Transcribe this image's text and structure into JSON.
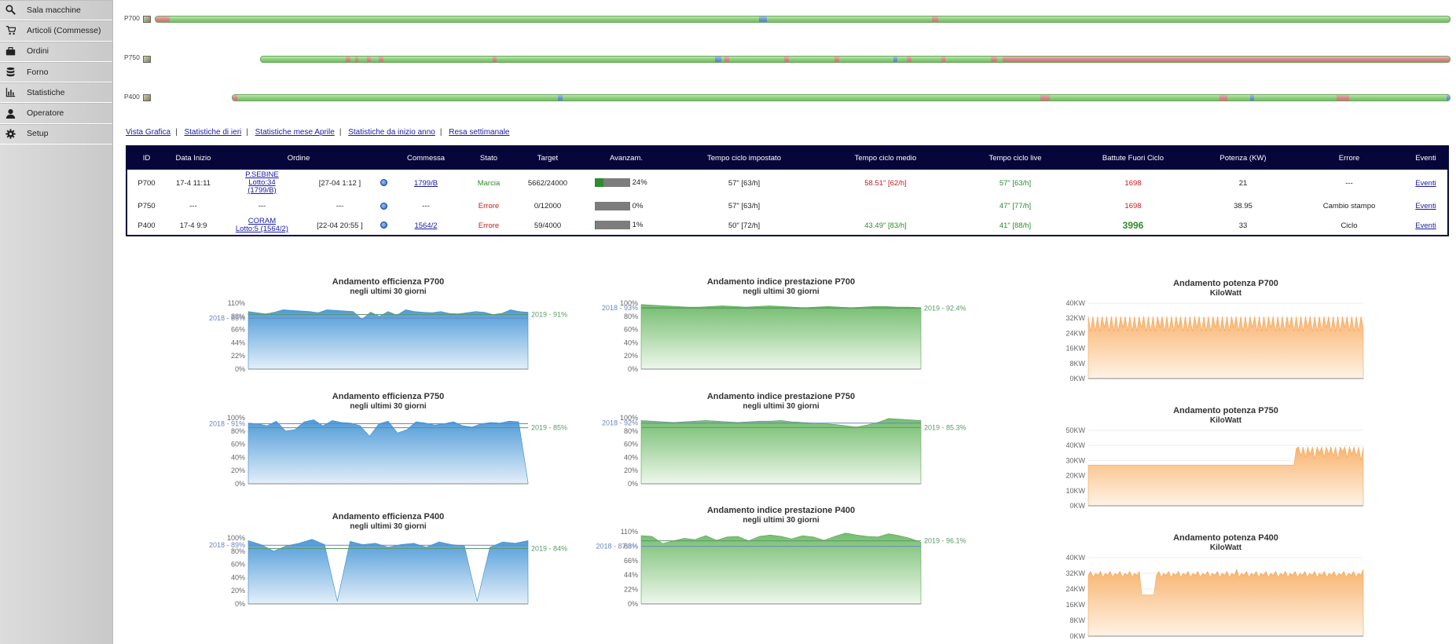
{
  "sidebar": {
    "items": [
      {
        "label": "Sala macchine",
        "icon": "search-icon"
      },
      {
        "label": "Articoli (Commesse)",
        "icon": "cart-icon"
      },
      {
        "label": "Ordini",
        "icon": "briefcase-icon"
      },
      {
        "label": "Forno",
        "icon": "database-icon"
      },
      {
        "label": "Statistiche",
        "icon": "bar-chart-icon"
      },
      {
        "label": "Operatore",
        "icon": "user-icon"
      },
      {
        "label": "Setup",
        "icon": "gear-icon"
      }
    ]
  },
  "timeline": {
    "rows": [
      {
        "machine": "P700"
      },
      {
        "machine": "P750"
      },
      {
        "machine": "P400"
      }
    ]
  },
  "links": [
    "Vista Grafica",
    "Statistiche di ieri",
    "Statistiche mese Aprile",
    "Statistiche da inizio anno",
    "Resa settimanale"
  ],
  "table": {
    "headers": [
      "ID",
      "Data Inizio",
      "Ordine",
      "",
      "",
      "Commessa",
      "Stato",
      "Target",
      "Avanzam.",
      "Tempo ciclo impostato",
      "Tempo ciclo medio",
      "Tempo ciclo live",
      "Battute Fuori Ciclo",
      "Potenza (KW)",
      "Errore",
      "Eventi"
    ],
    "rows": [
      {
        "id": "P700",
        "data_inizio": "17-4 11:11",
        "ordine_a": "P.SEBINE",
        "ordine_b": "Lotto:34",
        "ordine_c": "(1799/B)",
        "ordine_date": "[27-04 1:12 ]",
        "commessa": "1799/B",
        "stato": "Marcia",
        "target": "5662/24000",
        "progress": 24,
        "progress_label": "24%",
        "ciclo_impostato": "57\" [63/h]",
        "ciclo_medio": "58.51\" [62/h]",
        "ciclo_live": "57\" [63/h]",
        "battute": "1698",
        "potenza": "21",
        "errore": "---",
        "eventi": "Eventi"
      },
      {
        "id": "P750",
        "data_inizio": "---",
        "ordine_a": "---",
        "ordine_b": "",
        "ordine_c": "",
        "ordine_date": "---",
        "commessa": "---",
        "stato": "Errore",
        "target": "0/12000",
        "progress": 0,
        "progress_label": "0%",
        "ciclo_impostato": "57\" [63/h]",
        "ciclo_medio": "",
        "ciclo_live": "47\" [77/h]",
        "battute": "1698",
        "potenza": "38.95",
        "errore": "Cambio stampo",
        "eventi": "Eventi"
      },
      {
        "id": "P400",
        "data_inizio": "17-4 9:9",
        "ordine_a": "CORAM",
        "ordine_b": "Lotto:5 (1564/2)",
        "ordine_c": "",
        "ordine_date": "[22-04 20:55 ]",
        "commessa": "1564/2",
        "stato": "Errore",
        "target": "59/4000",
        "progress": 1,
        "progress_label": "1%",
        "ciclo_impostato": "50\" [72/h]",
        "ciclo_medio": "43.49\" [83/h]",
        "ciclo_live": "41\" [88/h]",
        "battute": "3996",
        "potenza": "33",
        "errore": "Ciclo",
        "eventi": "Eventi"
      }
    ]
  },
  "colors": {
    "accent_navy": "#06063a",
    "blue_area": "#5ba3dd",
    "green_area": "#7ec27a",
    "orange_area": "#f9b877",
    "ref_blue": "#6a86c0",
    "ref_green": "#5a9a6a"
  },
  "chart_data": [
    {
      "type": "area",
      "title": "Andamento efficienza P700",
      "subtitle": "negli ultimi 30 giorni",
      "yticks": [
        "110%",
        "88%",
        "66%",
        "44%",
        "22%",
        "0%"
      ],
      "ylim": [
        0,
        110
      ],
      "ref_left": "2018 - 85%",
      "ref_left_value": 85,
      "ref_right": "2019 - 91%",
      "ref_right_value": 91,
      "values": [
        96,
        94,
        92,
        95,
        99,
        98,
        97,
        96,
        94,
        99,
        98,
        97,
        96,
        83,
        95,
        88,
        96,
        90,
        99,
        96,
        95,
        94,
        96,
        93,
        92,
        94,
        96,
        95,
        91,
        93,
        99,
        96,
        95
      ]
    },
    {
      "type": "area",
      "title": "Andamento efficienza P750",
      "subtitle": "negli ultimi 30 giorni",
      "yticks": [
        "100%",
        "80%",
        "60%",
        "40%",
        "20%",
        "0%"
      ],
      "ylim": [
        0,
        100
      ],
      "ref_left": "2018 - 91%",
      "ref_left_value": 91,
      "ref_right": "2019 - 85%",
      "ref_right_value": 85,
      "values": [
        92,
        91,
        88,
        95,
        80,
        82,
        94,
        97,
        88,
        96,
        93,
        92,
        88,
        72,
        91,
        95,
        77,
        82,
        94,
        92,
        89,
        91,
        94,
        88,
        86,
        91,
        93,
        92,
        95,
        94,
        2
      ]
    },
    {
      "type": "area",
      "title": "Andamento efficienza P400",
      "subtitle": "negli ultimi 30 giorni",
      "yticks": [
        "100%",
        "80%",
        "60%",
        "40%",
        "20%",
        "0%"
      ],
      "ylim": [
        0,
        100
      ],
      "ref_left": "2018 - 89%",
      "ref_left_value": 89,
      "ref_right": "2019 - 84%",
      "ref_right_value": 84,
      "values": [
        96,
        90,
        80,
        88,
        92,
        98,
        90,
        4,
        95,
        90,
        92,
        86,
        90,
        92,
        86,
        94,
        90,
        88,
        4,
        86,
        94,
        92,
        96
      ]
    },
    {
      "type": "area",
      "title": "Andamento indice prestazione P700",
      "subtitle": "negli ultimi 30 giorni",
      "yticks": [
        "100%",
        "80%",
        "60%",
        "40%",
        "20%",
        "0%"
      ],
      "ylim": [
        0,
        100
      ],
      "ref_left": "2018 - 93%",
      "ref_left_value": 93,
      "ref_right": "2019 - 92.4%",
      "ref_right_value": 92.4,
      "values": [
        98,
        97,
        96,
        95,
        94,
        94,
        95,
        96,
        95,
        94,
        95,
        96,
        95,
        94,
        93,
        94,
        95,
        94,
        93,
        94,
        95,
        95,
        94,
        94,
        93
      ]
    },
    {
      "type": "area",
      "title": "Andamento indice prestazione P750",
      "subtitle": "negli ultimi 30 giorni",
      "yticks": [
        "100%",
        "80%",
        "60%",
        "40%",
        "20%",
        "0%"
      ],
      "ylim": [
        0,
        100
      ],
      "ref_left": "2018 - 92%",
      "ref_left_value": 92,
      "ref_right": "2019 - 85.3%",
      "ref_right_value": 85.3,
      "values": [
        96,
        95,
        94,
        93,
        94,
        95,
        96,
        95,
        94,
        93,
        94,
        95,
        95,
        96,
        94,
        93,
        92,
        91,
        90,
        88,
        86,
        89,
        93,
        99,
        98,
        97,
        96
      ]
    },
    {
      "type": "area",
      "title": "Andamento indice prestazione P400",
      "subtitle": "negli ultimi 30 giorni",
      "yticks": [
        "110%",
        "88%",
        "66%",
        "44%",
        "22%",
        "0%"
      ],
      "ylim": [
        0,
        110
      ],
      "ref_left": "2018 - 87.8%",
      "ref_left_value": 87.8,
      "ref_right": "2019 - 96.1%",
      "ref_right_value": 96.1,
      "values": [
        104,
        103,
        92,
        96,
        100,
        98,
        104,
        97,
        102,
        103,
        96,
        103,
        105,
        103,
        99,
        104,
        102,
        97,
        103,
        108,
        105,
        103,
        102,
        107,
        104,
        100,
        94
      ]
    },
    {
      "type": "area",
      "title": "Andamento potenza P700",
      "subtitle": "KiloWatt",
      "yticks": [
        "40KW",
        "32KW",
        "24KW",
        "16KW",
        "8KW",
        "0KW"
      ],
      "ylim": [
        0,
        40
      ],
      "values": [
        33,
        25,
        33,
        25,
        33,
        25,
        33,
        27,
        33,
        25,
        33,
        25,
        33,
        25,
        33,
        27,
        33,
        25,
        33,
        25,
        33,
        25,
        33,
        27,
        33,
        25,
        33,
        25,
        33,
        25,
        33,
        27,
        33,
        25,
        33,
        25,
        33,
        25,
        33,
        27,
        33,
        25,
        33,
        25,
        33,
        25,
        33,
        27,
        33,
        25,
        33,
        25,
        33,
        25,
        33,
        27,
        33,
        25,
        33,
        25,
        33,
        25,
        33,
        27,
        33,
        25,
        33,
        25,
        33,
        25,
        33,
        27,
        33,
        25,
        33,
        25,
        33,
        25,
        33,
        27,
        33,
        25,
        33,
        25,
        33,
        25,
        33,
        27,
        33,
        25,
        33,
        25,
        33,
        25,
        33,
        27,
        33,
        25,
        33,
        25,
        33,
        25,
        33,
        27,
        33,
        25,
        33,
        25,
        33,
        25,
        33,
        27,
        33,
        25,
        33,
        25,
        33,
        25,
        33,
        27
      ]
    },
    {
      "type": "area",
      "title": "Andamento potenza P750",
      "subtitle": "KiloWatt",
      "yticks": [
        "50KW",
        "40KW",
        "30KW",
        "20KW",
        "10KW",
        "0KW"
      ],
      "ylim": [
        0,
        50
      ],
      "values": [
        27,
        27,
        27,
        27,
        27,
        27,
        27,
        27,
        27,
        27,
        27,
        27,
        27,
        27,
        27,
        27,
        27,
        27,
        27,
        27,
        27,
        27,
        27,
        27,
        27,
        27,
        27,
        27,
        27,
        27,
        27,
        27,
        27,
        27,
        27,
        27,
        27,
        27,
        27,
        27,
        27,
        27,
        27,
        27,
        27,
        27,
        27,
        27,
        27,
        27,
        27,
        27,
        27,
        27,
        27,
        27,
        27,
        27,
        27,
        27,
        27,
        27,
        27,
        27,
        27,
        27,
        27,
        27,
        27,
        27,
        27,
        27,
        27,
        27,
        27,
        27,
        27,
        27,
        27,
        27,
        27,
        27,
        27,
        27,
        27,
        27,
        27,
        27,
        27,
        27,
        38,
        39,
        33,
        39,
        32,
        39,
        34,
        39,
        31,
        39,
        35,
        39,
        32,
        39,
        34,
        39,
        33,
        39,
        31,
        39,
        36,
        39,
        32,
        39,
        34,
        39,
        33,
        39,
        30,
        39
      ]
    },
    {
      "type": "area",
      "title": "Andamento potenza P400",
      "subtitle": "KiloWatt",
      "yticks": [
        "40KW",
        "32KW",
        "24KW",
        "16KW",
        "8KW",
        "0KW"
      ],
      "ylim": [
        0,
        40
      ],
      "values": [
        31,
        33,
        30,
        32,
        31,
        33,
        30,
        32,
        31,
        33,
        30,
        32,
        31,
        33,
        30,
        32,
        31,
        33,
        30,
        32,
        31,
        33,
        21,
        21,
        21,
        21,
        21,
        21,
        31,
        33,
        30,
        32,
        31,
        33,
        30,
        32,
        31,
        33,
        30,
        32,
        31,
        33,
        30,
        32,
        31,
        33,
        30,
        32,
        31,
        33,
        30,
        32,
        31,
        33,
        30,
        32,
        31,
        33,
        30,
        32,
        31,
        34,
        30,
        32,
        31,
        33,
        30,
        32,
        31,
        33,
        30,
        32,
        31,
        33,
        30,
        32,
        31,
        33,
        30,
        32,
        31,
        33,
        30,
        32,
        31,
        33,
        30,
        32,
        31,
        33,
        30,
        32,
        31,
        33,
        30,
        32,
        31,
        33,
        30,
        32,
        31,
        33,
        30,
        32,
        31,
        33,
        30,
        32,
        31,
        33,
        30,
        32,
        31,
        34
      ]
    }
  ]
}
